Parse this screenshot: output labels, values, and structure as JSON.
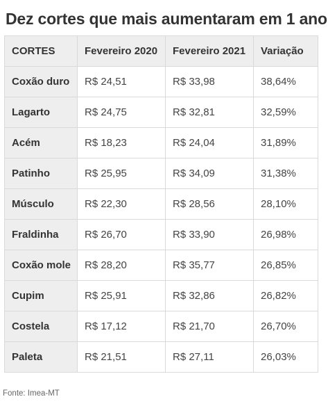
{
  "title": "Dez cortes que mais aumentaram em 1 ano",
  "source": "Fonte: Imea-MT",
  "chart_data": {
    "type": "table",
    "title": "Dez cortes que mais aumentaram em 1 ano",
    "columns": [
      "CORTES",
      "Fevereiro 2020",
      "Fevereiro 2021",
      "Variação"
    ],
    "rows": [
      [
        "Coxão duro",
        "R$ 24,51",
        "R$ 33,98",
        "38,64%"
      ],
      [
        "Lagarto",
        "R$ 24,75",
        "R$ 32,81",
        "32,59%"
      ],
      [
        "Acém",
        "R$ 18,23",
        "R$ 24,04",
        "31,89%"
      ],
      [
        "Patinho",
        "R$ 25,95",
        "R$ 34,09",
        "31,38%"
      ],
      [
        "Músculo",
        "R$ 22,30",
        "R$ 28,56",
        "28,10%"
      ],
      [
        "Fraldinha",
        "R$ 26,70",
        "R$ 33,90",
        "26,98%"
      ],
      [
        "Coxão mole",
        "R$ 28,20",
        "R$ 35,77",
        "26,85%"
      ],
      [
        "Cupim",
        "R$ 25,91",
        "R$ 32,86",
        "26,82%"
      ],
      [
        "Costela",
        "R$ 17,12",
        "R$ 21,70",
        "26,70%"
      ],
      [
        "Paleta",
        "R$ 21,51",
        "R$ 27,11",
        "26,03%"
      ]
    ],
    "source": "Fonte: Imea-MT"
  }
}
